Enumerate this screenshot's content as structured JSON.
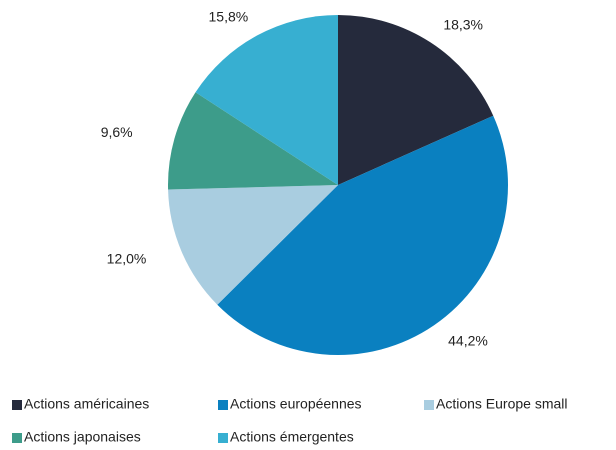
{
  "chart_data": {
    "type": "pie",
    "categories": [
      "Actions américaines",
      "Actions européennes",
      "Actions Europe small",
      "Actions japonaises",
      "Actions émergentes"
    ],
    "values": [
      18.3,
      44.2,
      12.0,
      9.6,
      15.8
    ],
    "value_labels": [
      "18,3%",
      "44,2%",
      "12,0%",
      "9,6%",
      "15,8%"
    ],
    "colors": [
      "#252a3c",
      "#0a80c0",
      "#a9cde0",
      "#3d9c8a",
      "#37afd1"
    ],
    "legend": "bottom"
  }
}
